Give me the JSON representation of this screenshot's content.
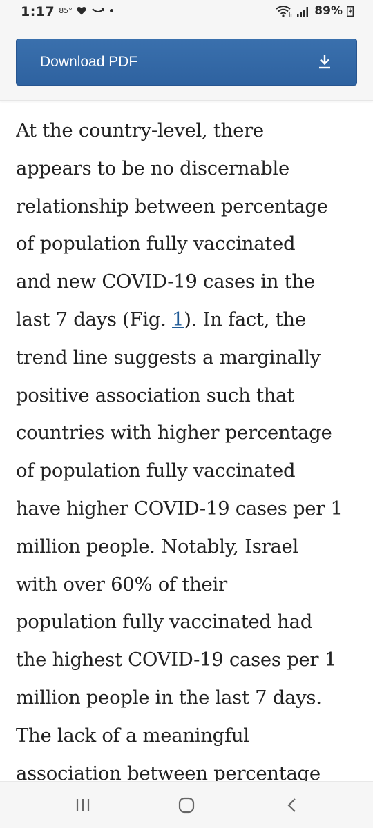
{
  "status_bar": {
    "time": "1:17",
    "temperature": "85°",
    "battery": "89%",
    "icons": [
      "heart-icon",
      "smile-icon",
      "dot-icon",
      "wifi-icon",
      "signal-icon",
      "battery-charging-icon"
    ]
  },
  "header": {
    "download_label": "Download PDF",
    "download_icon": "download-icon",
    "accent_color": "#3468a6"
  },
  "article": {
    "lines": [
      "At the country-level, there",
      "appears to be no discernable",
      "relationship between percentage",
      "of population fully vaccinated",
      "and new COVID-19 cases in the",
      "last 7 days (Fig. ",
      "trend line suggests a marginally",
      "positive association such that",
      "countries with higher percentage",
      "of population fully vaccinated",
      "have higher COVID-19 cases per 1",
      "million people. Notably, Israel",
      "with over 60% of their",
      "population fully vaccinated had",
      "the highest COVID-19 cases per 1",
      "million people in the last 7 days.",
      "The lack of a meaningful",
      "association between percentage"
    ],
    "fig_link": "1",
    "line6_suffix": "). In fact, the",
    "link_color": "#1f5a96"
  },
  "nav_bar": {
    "icons": [
      "recent-apps-icon",
      "home-icon",
      "back-icon"
    ]
  }
}
